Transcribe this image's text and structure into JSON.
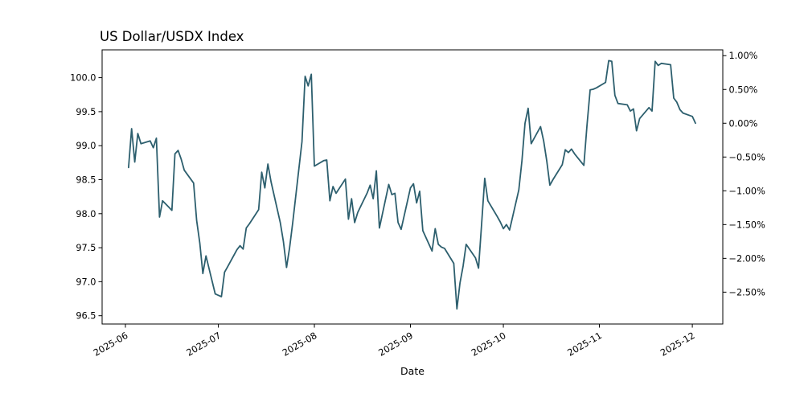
{
  "chart_data": {
    "type": "line",
    "title": "US Dollar/USDX Index",
    "xlabel": "Date",
    "line_color": "#2d5f6e",
    "background_color": "#ffffff",
    "legend": "none",
    "grid": false,
    "left_axis": {
      "ticks": [
        {
          "label": "100.0",
          "value": 100.0
        },
        {
          "label": "99.5",
          "value": 99.5
        },
        {
          "label": "99.0",
          "value": 99.0
        },
        {
          "label": "98.5",
          "value": 98.5
        },
        {
          "label": "98.0",
          "value": 98.0
        },
        {
          "label": "97.5",
          "value": 97.5
        },
        {
          "label": "97.0",
          "value": 97.0
        },
        {
          "label": "96.5",
          "value": 96.5
        }
      ]
    },
    "right_axis": {
      "baseline_price": 99.33,
      "ticks": [
        {
          "label": "1.00%",
          "value": 1.0
        },
        {
          "label": "0.50%",
          "value": 0.5
        },
        {
          "label": "0.00%",
          "value": 0.0
        },
        {
          "label": "−0.50%",
          "value": -0.5
        },
        {
          "label": "−1.00%",
          "value": -1.0
        },
        {
          "label": "−1.50%",
          "value": -1.5
        },
        {
          "label": "−2.00%",
          "value": -2.0
        },
        {
          "label": "−2.50%",
          "value": -2.5
        }
      ]
    },
    "x_axis": {
      "ticks": [
        {
          "label": "2025-06",
          "date": "2025-06-01"
        },
        {
          "label": "2025-07",
          "date": "2025-07-01"
        },
        {
          "label": "2025-08",
          "date": "2025-08-01"
        },
        {
          "label": "2025-09",
          "date": "2025-09-01"
        },
        {
          "label": "2025-10",
          "date": "2025-10-01"
        },
        {
          "label": "2025-11",
          "date": "2025-11-01"
        },
        {
          "label": "2025-12",
          "date": "2025-12-01"
        }
      ]
    },
    "series": {
      "name": "US Dollar/USDX Index",
      "dates": [
        "2025-06-02",
        "2025-06-03",
        "2025-06-04",
        "2025-06-05",
        "2025-06-06",
        "2025-06-09",
        "2025-06-10",
        "2025-06-11",
        "2025-06-12",
        "2025-06-13",
        "2025-06-16",
        "2025-06-17",
        "2025-06-18",
        "2025-06-19",
        "2025-06-20",
        "2025-06-23",
        "2025-06-24",
        "2025-06-25",
        "2025-06-26",
        "2025-06-27",
        "2025-06-30",
        "2025-07-01",
        "2025-07-02",
        "2025-07-03",
        "2025-07-04",
        "2025-07-07",
        "2025-07-08",
        "2025-07-09",
        "2025-07-10",
        "2025-07-11",
        "2025-07-14",
        "2025-07-15",
        "2025-07-16",
        "2025-07-17",
        "2025-07-18",
        "2025-07-21",
        "2025-07-22",
        "2025-07-23",
        "2025-07-24",
        "2025-07-25",
        "2025-07-28",
        "2025-07-29",
        "2025-07-30",
        "2025-07-31",
        "2025-08-01",
        "2025-08-04",
        "2025-08-05",
        "2025-08-06",
        "2025-08-07",
        "2025-08-08",
        "2025-08-11",
        "2025-08-12",
        "2025-08-13",
        "2025-08-14",
        "2025-08-15",
        "2025-08-18",
        "2025-08-19",
        "2025-08-20",
        "2025-08-21",
        "2025-08-22",
        "2025-08-25",
        "2025-08-26",
        "2025-08-27",
        "2025-08-28",
        "2025-08-29",
        "2025-09-01",
        "2025-09-02",
        "2025-09-03",
        "2025-09-04",
        "2025-09-05",
        "2025-09-08",
        "2025-09-09",
        "2025-09-10",
        "2025-09-11",
        "2025-09-12",
        "2025-09-15",
        "2025-09-16",
        "2025-09-17",
        "2025-09-18",
        "2025-09-19",
        "2025-09-22",
        "2025-09-23",
        "2025-09-24",
        "2025-09-25",
        "2025-09-26",
        "2025-09-29",
        "2025-09-30",
        "2025-10-01",
        "2025-10-02",
        "2025-10-03",
        "2025-10-06",
        "2025-10-07",
        "2025-10-08",
        "2025-10-09",
        "2025-10-10",
        "2025-10-13",
        "2025-10-14",
        "2025-10-15",
        "2025-10-16",
        "2025-10-17",
        "2025-10-20",
        "2025-10-21",
        "2025-10-22",
        "2025-10-23",
        "2025-10-24",
        "2025-10-27",
        "2025-10-28",
        "2025-10-29",
        "2025-10-30",
        "2025-10-31",
        "2025-11-03",
        "2025-11-04",
        "2025-11-05",
        "2025-11-06",
        "2025-11-07",
        "2025-11-10",
        "2025-11-11",
        "2025-11-12",
        "2025-11-13",
        "2025-11-14",
        "2025-11-17",
        "2025-11-18",
        "2025-11-19",
        "2025-11-20",
        "2025-11-21",
        "2025-11-24",
        "2025-11-25",
        "2025-11-26",
        "2025-11-27",
        "2025-11-28",
        "2025-12-01",
        "2025-12-02"
      ],
      "values": [
        98.68,
        99.25,
        98.76,
        99.18,
        99.03,
        99.07,
        98.97,
        99.11,
        97.95,
        98.19,
        98.05,
        98.88,
        98.93,
        98.8,
        98.64,
        98.45,
        97.9,
        97.57,
        97.12,
        97.38,
        96.82,
        96.8,
        96.78,
        97.14,
        97.22,
        97.47,
        97.53,
        97.48,
        97.79,
        97.85,
        98.06,
        98.61,
        98.38,
        98.73,
        98.47,
        97.87,
        97.59,
        97.21,
        97.5,
        97.87,
        99.06,
        100.02,
        99.88,
        100.05,
        98.7,
        98.78,
        98.79,
        98.19,
        98.4,
        98.3,
        98.51,
        97.92,
        98.22,
        97.87,
        98.02,
        98.3,
        98.42,
        98.22,
        98.63,
        97.79,
        98.43,
        98.28,
        98.3,
        97.87,
        97.77,
        98.38,
        98.44,
        98.16,
        98.33,
        97.75,
        97.45,
        97.78,
        97.55,
        97.51,
        97.49,
        97.27,
        96.6,
        96.98,
        97.23,
        97.55,
        97.35,
        97.2,
        97.86,
        98.52,
        98.19,
        97.96,
        97.88,
        97.78,
        97.84,
        97.76,
        98.35,
        98.78,
        99.33,
        99.55,
        99.03,
        99.28,
        99.07,
        98.78,
        98.42,
        98.5,
        98.72,
        98.94,
        98.9,
        98.95,
        98.88,
        98.71,
        99.3,
        99.82,
        99.83,
        99.85,
        99.93,
        100.25,
        100.24,
        99.74,
        99.62,
        99.6,
        99.51,
        99.54,
        99.22,
        99.4,
        99.56,
        99.51,
        100.24,
        100.18,
        100.21,
        100.19,
        99.7,
        99.64,
        99.53,
        99.48,
        99.43,
        99.33
      ]
    }
  }
}
